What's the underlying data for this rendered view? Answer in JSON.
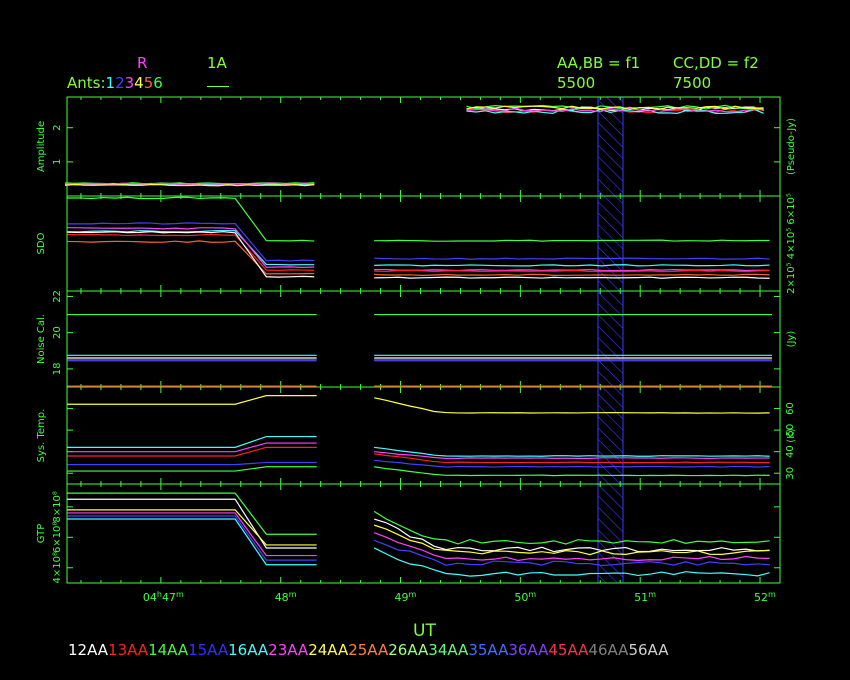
{
  "header": {
    "polarization": "R",
    "if_label": "1A",
    "ants_label": "Ants:",
    "ant_numbers": [
      "1",
      "2",
      "3",
      "4",
      "5",
      "6"
    ],
    "ant_colors": [
      "#40ffff",
      "#4040ff",
      "#ff40ff",
      "#ffff40",
      "#ff6030",
      "#40ff40"
    ],
    "freq_left": "AA,BB = f1",
    "freq_right": "CC,DD = f2",
    "freq_left_value": "5500",
    "freq_right_value": "7500"
  },
  "axis": {
    "xlabel": "UT",
    "xticks": [
      {
        "t": 47,
        "h": "04",
        "m": "47"
      },
      {
        "t": 48,
        "h": "",
        "m": "48"
      },
      {
        "t": 49,
        "h": "",
        "m": "49"
      },
      {
        "t": 50,
        "h": "",
        "m": "50"
      },
      {
        "t": 51,
        "h": "",
        "m": "51"
      },
      {
        "t": 52,
        "h": "",
        "m": "52"
      }
    ],
    "hour_suffix": "h",
    "minute_suffix": "m"
  },
  "chart_data": {
    "type": "line",
    "x_range": [
      "04:46:13",
      "04:52:10"
    ],
    "flag_region": [
      "04:50:50",
      "04:51:00"
    ],
    "panels": [
      {
        "id": "amplitude",
        "ylabel": "Amplitude",
        "right_label": "(Pseudo-Jy)",
        "yticks": [
          "1",
          "2"
        ],
        "ytick_values": [
          1,
          2
        ],
        "ylim": [
          0,
          2.9
        ],
        "series": [
          {
            "color": "#ffffff",
            "segments": [
              {
                "x0": 46.2,
                "x1": 48.3,
                "y": 0.35
              },
              {
                "x0": 49.55,
                "x1": 52.1,
                "y": 2.55
              }
            ]
          },
          {
            "color": "#ff2020",
            "segments": [
              {
                "x0": 46.2,
                "x1": 48.3,
                "y": 0.33
              },
              {
                "x0": 49.55,
                "x1": 52.1,
                "y": 2.5
              }
            ]
          },
          {
            "color": "#40ff40",
            "segments": [
              {
                "x0": 46.2,
                "x1": 48.3,
                "y": 0.37
              },
              {
                "x0": 49.55,
                "x1": 52.1,
                "y": 2.6
              }
            ]
          },
          {
            "color": "#40ffff",
            "segments": [
              {
                "x0": 46.2,
                "x1": 48.3,
                "y": 0.34
              },
              {
                "x0": 49.55,
                "x1": 52.1,
                "y": 2.48
              }
            ]
          },
          {
            "color": "#ff40ff",
            "segments": [
              {
                "x0": 46.2,
                "x1": 48.3,
                "y": 0.36
              },
              {
                "x0": 49.55,
                "x1": 52.1,
                "y": 2.52
              }
            ]
          },
          {
            "color": "#ffff40",
            "segments": [
              {
                "x0": 46.2,
                "x1": 48.3,
                "y": 0.32
              },
              {
                "x0": 49.55,
                "x1": 52.1,
                "y": 2.58
              }
            ]
          }
        ]
      },
      {
        "id": "sdo",
        "ylabel": "SDO",
        "right_label": "2×10⁵ 4×10⁵ 6×10⁵",
        "yticks": [],
        "ytick_values": [],
        "ylim": [
          0,
          10
        ],
        "series": [
          {
            "color": "#40ff40",
            "before": 9.8,
            "after": 5.3,
            "after2": 5.3
          },
          {
            "color": "#4040ff",
            "before": 7.1,
            "after": 3.2,
            "after2": 3.4
          },
          {
            "color": "#40ffff",
            "before": 6.3,
            "after": 2.8,
            "after2": 2.7
          },
          {
            "color": "#ff40ff",
            "before": 6.6,
            "after": 2.5,
            "after2": 2.2
          },
          {
            "color": "#ff2020",
            "before": 5.9,
            "after": 2.2,
            "after2": 2.1
          },
          {
            "color": "#ff6030",
            "before": 5.2,
            "after": 1.8,
            "after2": 1.7
          },
          {
            "color": "#ffffff",
            "before": 6.2,
            "after": 1.5,
            "after2": 1.4
          }
        ]
      },
      {
        "id": "noise_cal",
        "ylabel": "Noise Cal.",
        "right_label": "(Jy)",
        "yticks": [
          "18",
          "20",
          "22"
        ],
        "ytick_values": [
          18,
          20,
          22
        ],
        "ylim": [
          17,
          22.3
        ],
        "series": [
          {
            "color": "#40ff40",
            "y": 21.0
          },
          {
            "color": "#40ffff",
            "y": 18.75
          },
          {
            "color": "#ffffff",
            "y": 18.6
          },
          {
            "color": "#ff2020",
            "y": 18.5
          },
          {
            "color": "#4040ff",
            "y": 18.45
          },
          {
            "color": "#ff6030",
            "y": 17.05
          }
        ]
      },
      {
        "id": "sys_temp",
        "ylabel": "Sys. Temp.",
        "right_label": "(K)",
        "yticks": [
          "30",
          "40",
          "50",
          "60"
        ],
        "ytick_values": [
          30,
          40,
          50,
          60
        ],
        "ylim": [
          25,
          70
        ],
        "series": [
          {
            "color": "#ffff40",
            "before": 62,
            "after": 66,
            "start2": 65,
            "after2": 58
          },
          {
            "color": "#40ffff",
            "before": 42,
            "after": 47,
            "start2": 42,
            "after2": 38
          },
          {
            "color": "#ff40ff",
            "before": 40,
            "after": 44,
            "start2": 40,
            "after2": 37
          },
          {
            "color": "#ff2020",
            "before": 38,
            "after": 42,
            "start2": 39,
            "after2": 35
          },
          {
            "color": "#4040ff",
            "before": 34,
            "after": 35,
            "start2": 36,
            "after2": 33
          },
          {
            "color": "#40ff40",
            "before": 31,
            "after": 33,
            "start2": 33,
            "after2": 29
          }
        ]
      },
      {
        "id": "gtp",
        "ylabel": "GTP",
        "right_label": "",
        "yticks": [
          "4×10⁸",
          "6×10⁸",
          "8×10⁸"
        ],
        "ytick_values": [
          4,
          6,
          8
        ],
        "ylim": [
          3,
          9.5
        ],
        "series": [
          {
            "color": "#40ff40",
            "before": 8.9,
            "after": 6.2,
            "start2": 7.7,
            "after2": 5.7
          },
          {
            "color": "#ffffff",
            "before": 8.5,
            "after": 5.3,
            "start2": 7.2,
            "after2": 5.2
          },
          {
            "color": "#ffff40",
            "before": 7.8,
            "after": 5.5,
            "start2": 6.8,
            "after2": 5.0
          },
          {
            "color": "#ff40ff",
            "before": 7.6,
            "after": 4.8,
            "start2": 6.3,
            "after2": 4.6
          },
          {
            "color": "#4040ff",
            "before": 7.4,
            "after": 4.5,
            "start2": 5.8,
            "after2": 4.3
          },
          {
            "color": "#40ffff",
            "before": 7.2,
            "after": 4.2,
            "start2": 5.3,
            "after2": 3.6
          }
        ]
      }
    ]
  },
  "legend": [
    {
      "label": "12AA",
      "color": "#ffffff"
    },
    {
      "label": "13AA",
      "color": "#ff2020"
    },
    {
      "label": "14AA",
      "color": "#40ff40"
    },
    {
      "label": "15AA",
      "color": "#3030ff"
    },
    {
      "label": "16AA",
      "color": "#40ffff"
    },
    {
      "label": "23AA",
      "color": "#ff40ff"
    },
    {
      "label": "24AA",
      "color": "#ffff40"
    },
    {
      "label": "25AA",
      "color": "#ff8040"
    },
    {
      "label": "26AA",
      "color": "#a0ff80"
    },
    {
      "label": "34AA",
      "color": "#60ff80"
    },
    {
      "label": "35AA",
      "color": "#4070ff"
    },
    {
      "label": "36AA",
      "color": "#8040ff"
    },
    {
      "label": "45AA",
      "color": "#ff3050"
    },
    {
      "label": "46AA",
      "color": "#808080"
    },
    {
      "label": "56AA",
      "color": "#d0d0d0"
    }
  ]
}
